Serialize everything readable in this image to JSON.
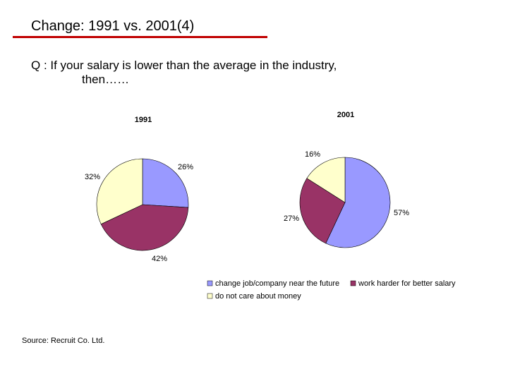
{
  "slide": {
    "title": "Change: 1991 vs. 2001(4)",
    "question_line1": "Q : If your salary is lower than the average in the industry,",
    "question_line2": "then……",
    "source": "Source: Recruit Co. Ltd."
  },
  "chart_data": {
    "type": "pie",
    "categories": [
      "change job/company near the future",
      "work harder for better salary",
      "do not care about money"
    ],
    "colors": [
      "#9999ff",
      "#993366",
      "#ffffcc"
    ],
    "series": [
      {
        "name": "1991",
        "values": [
          26,
          42,
          32
        ],
        "labels": [
          "26%",
          "42%",
          "32%"
        ]
      },
      {
        "name": "2001",
        "values": [
          57,
          27,
          16
        ],
        "labels": [
          "57%",
          "27%",
          "16%"
        ]
      }
    ],
    "legend_position": "bottom-right"
  }
}
